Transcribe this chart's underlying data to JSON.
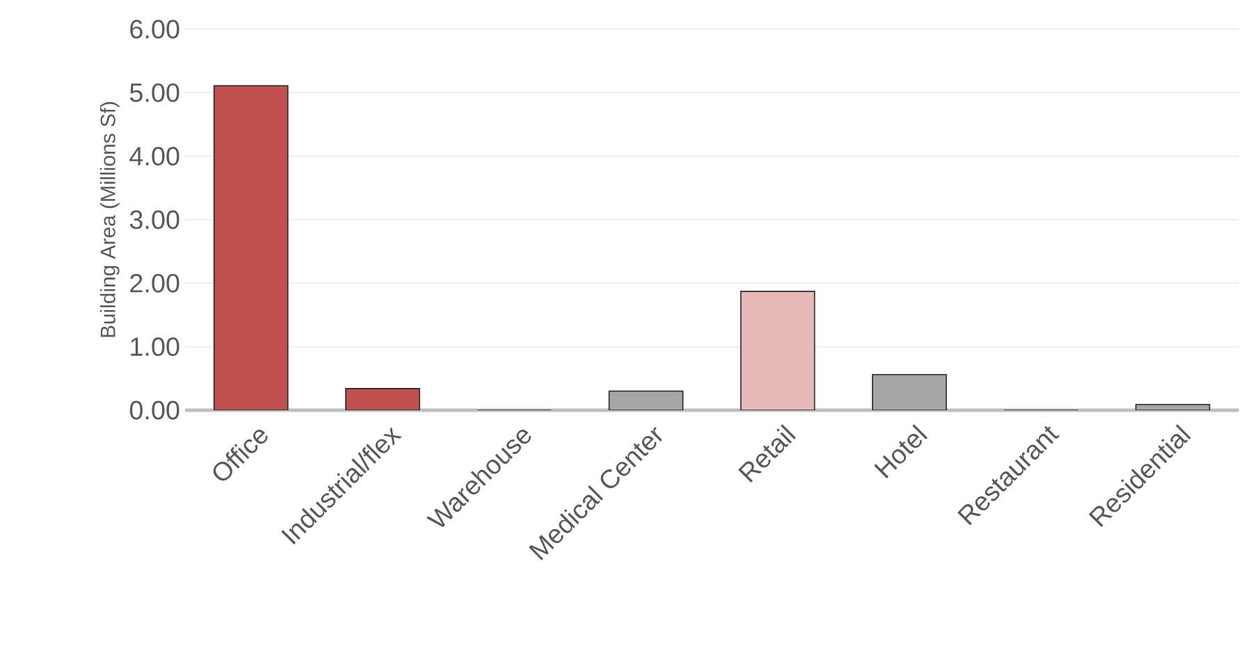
{
  "chart_data": {
    "type": "bar",
    "ylabel": "Building Area (Millions Sf)",
    "categories": [
      "Office",
      "Industrial/flex",
      "Warehouse",
      "Medical Center",
      "Retail",
      "Hotel",
      "Restaurant",
      "Residential"
    ],
    "values": [
      5.11,
      0.34,
      0,
      0.3,
      1.87,
      0.56,
      0,
      0.09
    ],
    "colors": [
      "#c0504d",
      "#c0504d",
      "#a6a6a6",
      "#a6a6a6",
      "#e6b9b8",
      "#a6a6a6",
      "#a6a6a6",
      "#a6a6a6"
    ],
    "ylim": [
      0,
      6
    ],
    "yticks": [
      {
        "value": 0,
        "label": "0.00"
      },
      {
        "value": 1,
        "label": "1.00"
      },
      {
        "value": 2,
        "label": "2.00"
      },
      {
        "value": 3,
        "label": "3.00"
      },
      {
        "value": 4,
        "label": "4.00"
      },
      {
        "value": 5,
        "label": "5.00"
      },
      {
        "value": 6,
        "label": "6.00"
      }
    ],
    "grid": "y"
  }
}
